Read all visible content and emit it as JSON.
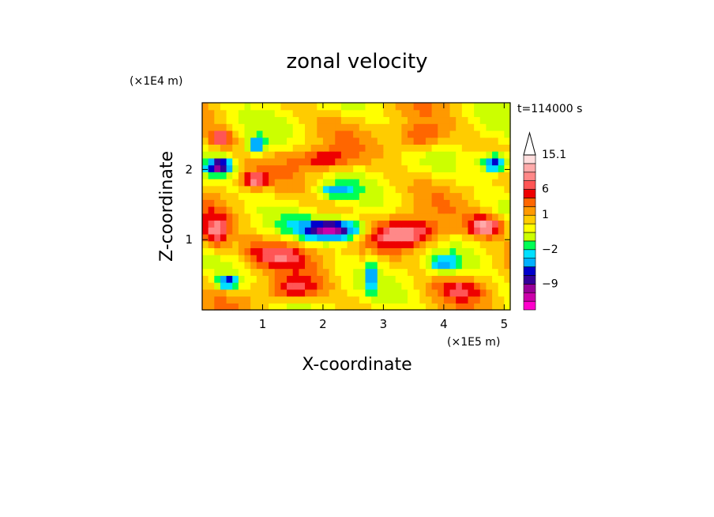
{
  "chart_data": {
    "type": "heatmap",
    "title": "zonal velocity",
    "xlabel": "X-coordinate",
    "ylabel": "Z-coordinate",
    "x_unit": "(×1E5 m)",
    "y_unit": "(×1E4 m)",
    "time_label": "t=114000 s",
    "xlim": [
      0,
      5.1
    ],
    "ylim": [
      0,
      2.95
    ],
    "x_ticks": [
      1,
      2,
      3,
      4,
      5
    ],
    "y_ticks": [
      1,
      2
    ],
    "colorbar": {
      "colors": [
        "#ff00cc",
        "#cc00aa",
        "#990099",
        "#330099",
        "#0000cc",
        "#00b0ff",
        "#00e0ff",
        "#00ff55",
        "#ccff00",
        "#ffff00",
        "#ffcc00",
        "#ff9900",
        "#ff6600",
        "#ee0000",
        "#ff5555",
        "#ff8888",
        "#ffaaaa",
        "#ffdddd"
      ],
      "levels_labeled": [
        {
          "label": "15.1",
          "level_index": 17
        },
        {
          "label": "6",
          "level_index": 13
        },
        {
          "label": "1",
          "level_index": 10
        },
        {
          "label": "−2",
          "level_index": 6
        },
        {
          "label": "−9",
          "level_index": 2
        }
      ],
      "extend": "max"
    },
    "field": {
      "nx": 51,
      "nz": 30,
      "features": [
        {
          "x": 2.2,
          "z": 1.15,
          "amp": -9,
          "sx": 0.55,
          "sz": 0.15
        },
        {
          "x": 3.4,
          "z": 1.1,
          "amp": 6,
          "sx": 0.6,
          "sz": 0.2
        },
        {
          "x": 0.3,
          "z": 2.05,
          "amp": -7,
          "sx": 0.2,
          "sz": 0.12
        },
        {
          "x": 0.9,
          "z": 2.35,
          "amp": -6,
          "sx": 0.15,
          "sz": 0.12
        },
        {
          "x": 0.3,
          "z": 2.45,
          "amp": 5,
          "sx": 0.2,
          "sz": 0.12
        },
        {
          "x": 0.85,
          "z": 1.85,
          "amp": 5,
          "sx": 0.2,
          "sz": 0.1
        },
        {
          "x": 4.85,
          "z": 2.1,
          "amp": -7,
          "sx": 0.25,
          "sz": 0.15
        },
        {
          "x": 4.7,
          "z": 1.2,
          "amp": 6,
          "sx": 0.3,
          "sz": 0.15
        },
        {
          "x": 0.4,
          "z": 0.4,
          "amp": -6,
          "sx": 0.2,
          "sz": 0.1
        },
        {
          "x": 2.8,
          "z": 0.5,
          "amp": -8,
          "sx": 0.05,
          "sz": 0.25
        },
        {
          "x": 1.2,
          "z": 0.8,
          "amp": 4,
          "sx": 0.6,
          "sz": 0.2
        },
        {
          "x": 0.2,
          "z": 1.1,
          "amp": 5,
          "sx": 0.25,
          "sz": 0.25
        },
        {
          "x": 4.0,
          "z": 0.65,
          "amp": -4,
          "sx": 0.25,
          "sz": 0.12
        },
        {
          "x": 3.6,
          "z": 2.45,
          "amp": 4,
          "sx": 0.4,
          "sz": 0.2
        },
        {
          "x": 2.2,
          "z": 1.7,
          "amp": -4,
          "sx": 0.3,
          "sz": 0.1
        },
        {
          "x": 1.5,
          "z": 0.3,
          "amp": 4,
          "sx": 0.4,
          "sz": 0.15
        },
        {
          "x": 4.3,
          "z": 0.3,
          "amp": 3,
          "sx": 0.4,
          "sz": 0.15
        },
        {
          "x": 2.0,
          "z": 2.15,
          "amp": 4,
          "sx": 0.5,
          "sz": 0.15
        }
      ]
    }
  }
}
